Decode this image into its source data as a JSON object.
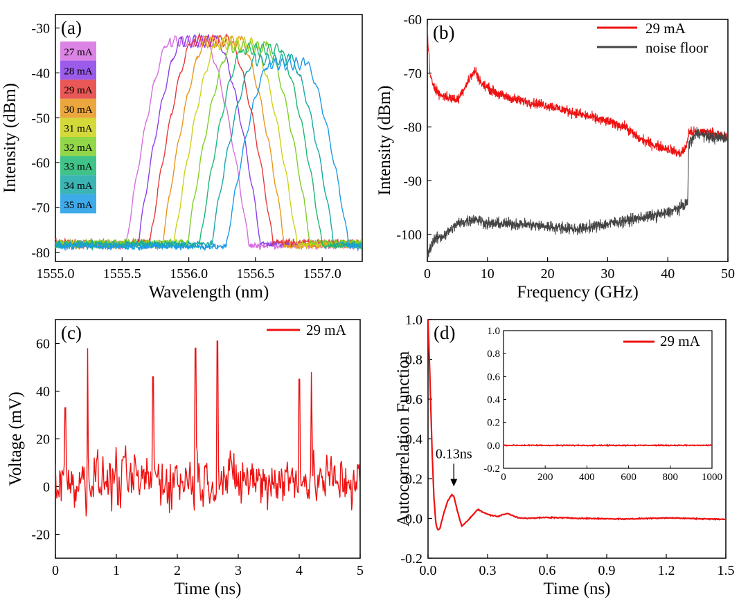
{
  "chart_data": [
    {
      "panel": "(a)",
      "type": "line",
      "xlabel": "Wavelength (nm)",
      "ylabel": "Intensity (dBm)",
      "xlim": [
        1555.0,
        1557.3
      ],
      "ylim": [
        -82,
        -27
      ],
      "xticks": [
        1555.0,
        1555.5,
        1556.0,
        1556.5,
        1557.0
      ],
      "yticks": [
        -80,
        -70,
        -60,
        -50,
        -40,
        -30
      ],
      "xtick_labels": [
        "1555.0",
        "1555.5",
        "1556.0",
        "1556.5",
        "1557.0"
      ],
      "ytick_labels": [
        "-80",
        "-70",
        "-60",
        "-50",
        "-40",
        "-30"
      ],
      "legend_placement": "left",
      "series": [
        {
          "name": "27 mA",
          "color": "#d66ee0",
          "center": 1555.99,
          "peak": -32.5
        },
        {
          "name": "28 mA",
          "color": "#8a3fe8",
          "center": 1556.08,
          "peak": -32.5
        },
        {
          "name": "29 mA",
          "color": "#e53a3a",
          "center": 1556.17,
          "peak": -32.3
        },
        {
          "name": "30 mA",
          "color": "#e8961c",
          "center": 1556.26,
          "peak": -32.6
        },
        {
          "name": "31 mA",
          "color": "#cdd218",
          "center": 1556.35,
          "peak": -33.0
        },
        {
          "name": "32 mA",
          "color": "#7fcf2a",
          "center": 1556.45,
          "peak": -33.8
        },
        {
          "name": "33 mA",
          "color": "#1fb873",
          "center": 1556.54,
          "peak": -34.2
        },
        {
          "name": "34 mA",
          "color": "#19a8a6",
          "center": 1556.63,
          "peak": -36.6
        },
        {
          "name": "35 mA",
          "color": "#1c9be6",
          "center": 1556.74,
          "peak": -37.5
        }
      ]
    },
    {
      "panel": "(b)",
      "type": "line",
      "xlabel": "Frequency (GHz)",
      "ylabel": "Intensity (dBm)",
      "xlim": [
        0,
        50
      ],
      "ylim": [
        -105,
        -60
      ],
      "xticks": [
        0,
        10,
        20,
        30,
        40,
        50
      ],
      "yticks": [
        -100,
        -90,
        -80,
        -70,
        -60
      ],
      "xtick_labels": [
        "0",
        "10",
        "20",
        "30",
        "40",
        "50"
      ],
      "ytick_labels": [
        "-100",
        "-90",
        "-80",
        "-70",
        "-60"
      ],
      "legend_placement": "top-right",
      "series": [
        {
          "name": "29 mA",
          "color": "#ee1111",
          "x": [
            0,
            0.5,
            2,
            5,
            7,
            8,
            9,
            12,
            15,
            20,
            25,
            30,
            33,
            35,
            38,
            40,
            42,
            43,
            43.5,
            45,
            47,
            50
          ],
          "y": [
            -62,
            -71,
            -74,
            -75,
            -71,
            -69.5,
            -72,
            -74,
            -75,
            -76,
            -77.5,
            -79,
            -80,
            -82,
            -83.5,
            -84,
            -85,
            -84,
            -81,
            -81,
            -81,
            -82
          ]
        },
        {
          "name": "noise floor",
          "color": "#444444",
          "x": [
            0,
            1,
            3,
            5,
            8,
            10,
            15,
            20,
            25,
            30,
            35,
            40,
            42,
            43.3,
            43.5,
            45,
            47,
            50
          ],
          "y": [
            -104,
            -101,
            -100,
            -98,
            -97,
            -98,
            -98,
            -98.5,
            -99,
            -98,
            -97,
            -96,
            -95,
            -94,
            -83,
            -81,
            -82,
            -82
          ]
        }
      ]
    },
    {
      "panel": "(c)",
      "type": "line",
      "xlabel": "Time (ns)",
      "ylabel": "Voltage (mV)",
      "xlim": [
        0,
        5
      ],
      "ylim": [
        -30,
        70
      ],
      "xticks": [
        0,
        1,
        2,
        3,
        4,
        5
      ],
      "yticks": [
        -20,
        0,
        20,
        40,
        60
      ],
      "xtick_labels": [
        "0",
        "1",
        "2",
        "3",
        "4",
        "5"
      ],
      "ytick_labels": [
        "-20",
        "0",
        "20",
        "40",
        "60"
      ],
      "legend_placement": "top-right",
      "series": [
        {
          "name": "29 mA",
          "color": "#ee1111",
          "peaks": [
            [
              0.53,
              58
            ],
            [
              1.6,
              46
            ],
            [
              2.3,
              58
            ],
            [
              2.66,
              61
            ],
            [
              4.0,
              45
            ],
            [
              4.2,
              48
            ],
            [
              0.16,
              33
            ]
          ]
        }
      ]
    },
    {
      "panel": "(d)",
      "type": "line",
      "xlabel": "Time (ns)",
      "ylabel": "Autocorrelation Function",
      "xlim": [
        0,
        1.5
      ],
      "ylim": [
        -0.2,
        1.0
      ],
      "xticks": [
        0.0,
        0.3,
        0.6,
        0.9,
        1.2,
        1.5
      ],
      "yticks": [
        -0.2,
        0.0,
        0.2,
        0.4,
        0.6,
        0.8,
        1.0
      ],
      "xtick_labels": [
        "0.0",
        "0.3",
        "0.6",
        "0.9",
        "1.2",
        "1.5"
      ],
      "ytick_labels": [
        "-0.2",
        "0.0",
        "0.2",
        "0.4",
        "0.6",
        "0.8",
        "1.0"
      ],
      "legend_placement": "top-right",
      "annotation": "0.13ns",
      "series": [
        {
          "name": "29 mA",
          "color": "#ee1111",
          "x": [
            0,
            0.01,
            0.02,
            0.03,
            0.04,
            0.05,
            0.06,
            0.08,
            0.1,
            0.12,
            0.13,
            0.15,
            0.17,
            0.2,
            0.25,
            0.3,
            0.35,
            0.4,
            0.45,
            0.5,
            0.6,
            0.8,
            1.0,
            1.2,
            1.5
          ],
          "y": [
            1.0,
            0.7,
            0.35,
            0.1,
            -0.03,
            -0.06,
            -0.05,
            0.03,
            0.09,
            0.12,
            0.11,
            0.03,
            -0.04,
            -0.01,
            0.045,
            0.02,
            0.01,
            0.025,
            0.005,
            0.0,
            0.005,
            0.0,
            -0.003,
            0.003,
            -0.005
          ]
        }
      ],
      "inset": {
        "xlim": [
          0,
          1000
        ],
        "ylim": [
          -0.2,
          1.0
        ],
        "xticks": [
          0,
          200,
          400,
          600,
          800,
          1000
        ],
        "yticks": [
          -0.2,
          0.0,
          0.2,
          0.4,
          0.6,
          0.8,
          1.0
        ],
        "xtick_labels": [
          "0",
          "200",
          "400",
          "600",
          "800",
          "1000"
        ],
        "ytick_labels": [
          "-0.2",
          "0.0",
          "0.2",
          "0.4",
          "0.6",
          "0.8",
          "1.0"
        ],
        "legend": "29 mA",
        "value": 0.0
      }
    }
  ]
}
